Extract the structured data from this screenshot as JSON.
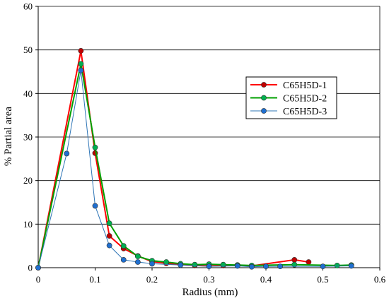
{
  "chart_data": {
    "type": "line",
    "title": "",
    "xlabel": "Radius (mm)",
    "ylabel": "% Partial area",
    "xlim": [
      0,
      0.6
    ],
    "ylim": [
      0,
      60
    ],
    "xticks": [
      "0",
      "0.1",
      "0.2",
      "0.3",
      "0.4",
      "0.5",
      "0.6"
    ],
    "yticks": [
      "0",
      "10",
      "20",
      "30",
      "40",
      "50",
      "60"
    ],
    "grid": "horizontal",
    "legend_position": "right",
    "series": [
      {
        "name": "C65H5D-1",
        "line_color": "#ff0000",
        "marker_color": "#c00000",
        "x": [
          0,
          0.075,
          0.1,
          0.125,
          0.15,
          0.175,
          0.2,
          0.225,
          0.25,
          0.275,
          0.3,
          0.325,
          0.35,
          0.375,
          0.45,
          0.475
        ],
        "y": [
          0,
          49.8,
          26.3,
          7.3,
          4.4,
          2.7,
          1.4,
          1.0,
          0.7,
          0.5,
          0.4,
          0.5,
          0.6,
          0.4,
          1.8,
          1.3
        ]
      },
      {
        "name": "C65H5D-2",
        "line_color": "#00a000",
        "marker_color": "#00b050",
        "x": [
          0,
          0.075,
          0.1,
          0.125,
          0.15,
          0.175,
          0.2,
          0.225,
          0.25,
          0.275,
          0.3,
          0.325,
          0.35,
          0.375,
          0.45,
          0.525,
          0.55
        ],
        "y": [
          0,
          46.8,
          27.6,
          10.2,
          5.0,
          2.6,
          1.6,
          1.3,
          0.9,
          0.7,
          0.8,
          0.7,
          0.6,
          0.5,
          0.7,
          0.5,
          0.6
        ]
      },
      {
        "name": "C65H5D-3",
        "line_color": "#2e75b6",
        "marker_color": "#1f6fd0",
        "x": [
          0,
          0.05,
          0.075,
          0.1,
          0.125,
          0.15,
          0.175,
          0.2,
          0.25,
          0.3,
          0.35,
          0.375,
          0.4,
          0.425,
          0.5,
          0.55
        ],
        "y": [
          0,
          26.2,
          45.3,
          14.2,
          5.1,
          1.8,
          1.3,
          0.9,
          0.6,
          0.3,
          0.4,
          0.2,
          0.3,
          0.3,
          0.3,
          0.4
        ]
      }
    ]
  }
}
